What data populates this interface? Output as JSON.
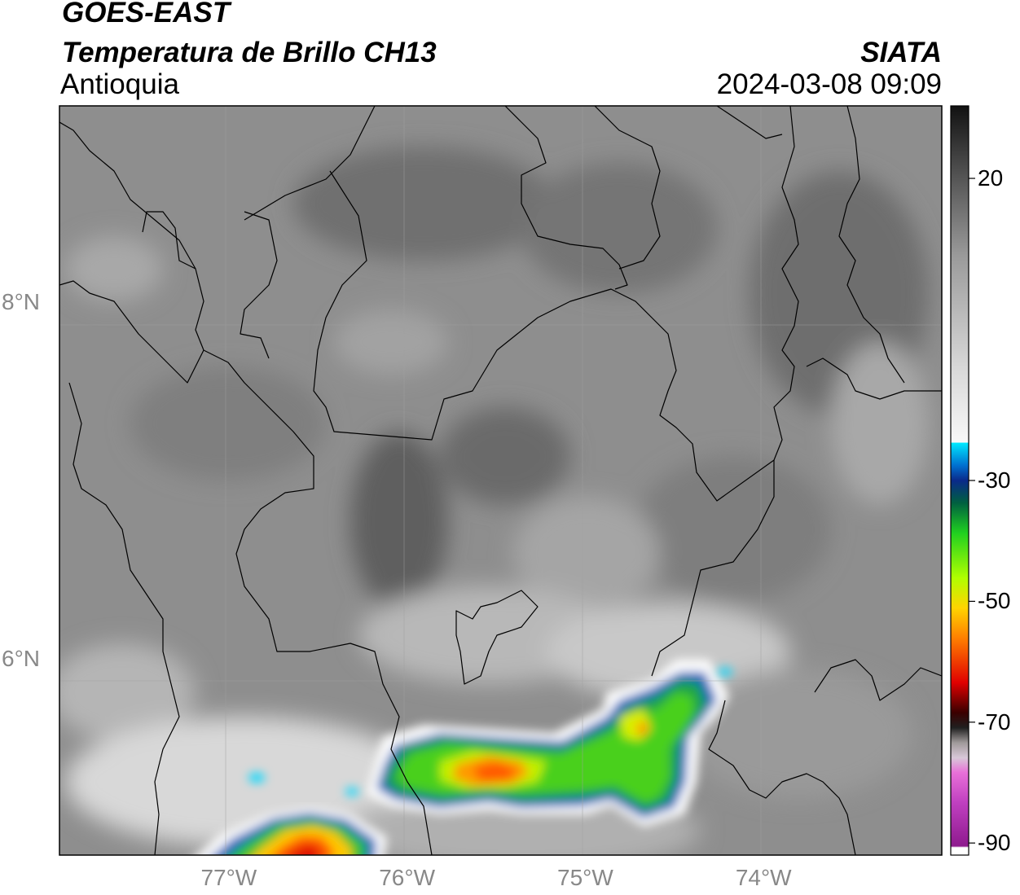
{
  "header": {
    "satellite": "GOES-EAST",
    "product": "Temperatura de Brillo CH13",
    "region": "Antioquia",
    "agency": "SIATA",
    "datetime": "2024-03-08 09:09"
  },
  "map": {
    "lon_range": [
      -77.95,
      -73.0
    ],
    "lat_range": [
      4.9,
      9.1
    ],
    "lon_ticks": [
      {
        "value": -77,
        "label": "77°W"
      },
      {
        "value": -76,
        "label": "76°W"
      },
      {
        "value": -75,
        "label": "75°W"
      },
      {
        "value": -74,
        "label": "74°W"
      }
    ],
    "lat_ticks": [
      {
        "value": 8,
        "label": "8°N"
      },
      {
        "value": 6,
        "label": "6°N"
      }
    ]
  },
  "colorbar": {
    "range": [
      -92,
      32
    ],
    "ticks": [
      {
        "value": 20,
        "label": "20"
      },
      {
        "value": -30,
        "label": "-30"
      },
      {
        "value": -50,
        "label": "-50"
      },
      {
        "value": -70,
        "label": "-70"
      },
      {
        "value": -90,
        "label": "-90"
      }
    ]
  }
}
